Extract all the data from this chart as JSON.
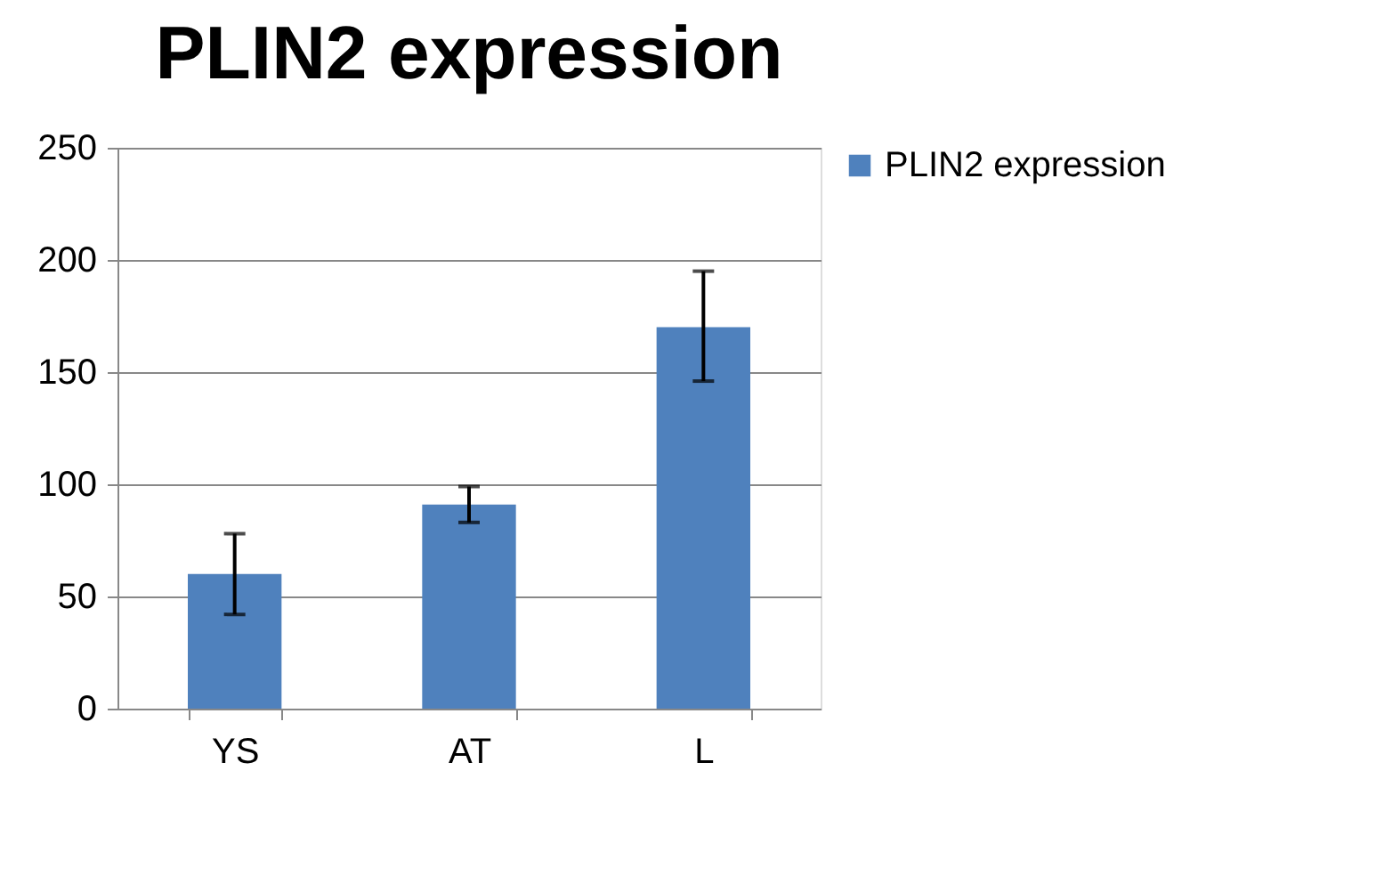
{
  "chart_data": {
    "type": "bar",
    "title": "PLIN2 expression",
    "categories": [
      "YS",
      "AT",
      "L"
    ],
    "series": [
      {
        "name": "PLIN2 expression",
        "color": "#4f81bd",
        "values": [
          60,
          91,
          170
        ],
        "errors": [
          [
            42,
            78
          ],
          [
            83,
            99
          ],
          [
            146,
            195
          ]
        ]
      }
    ],
    "ylim": [
      0,
      250
    ],
    "yticks": [
      0,
      50,
      100,
      150,
      200,
      250
    ],
    "grid": "y",
    "legend": "right"
  }
}
